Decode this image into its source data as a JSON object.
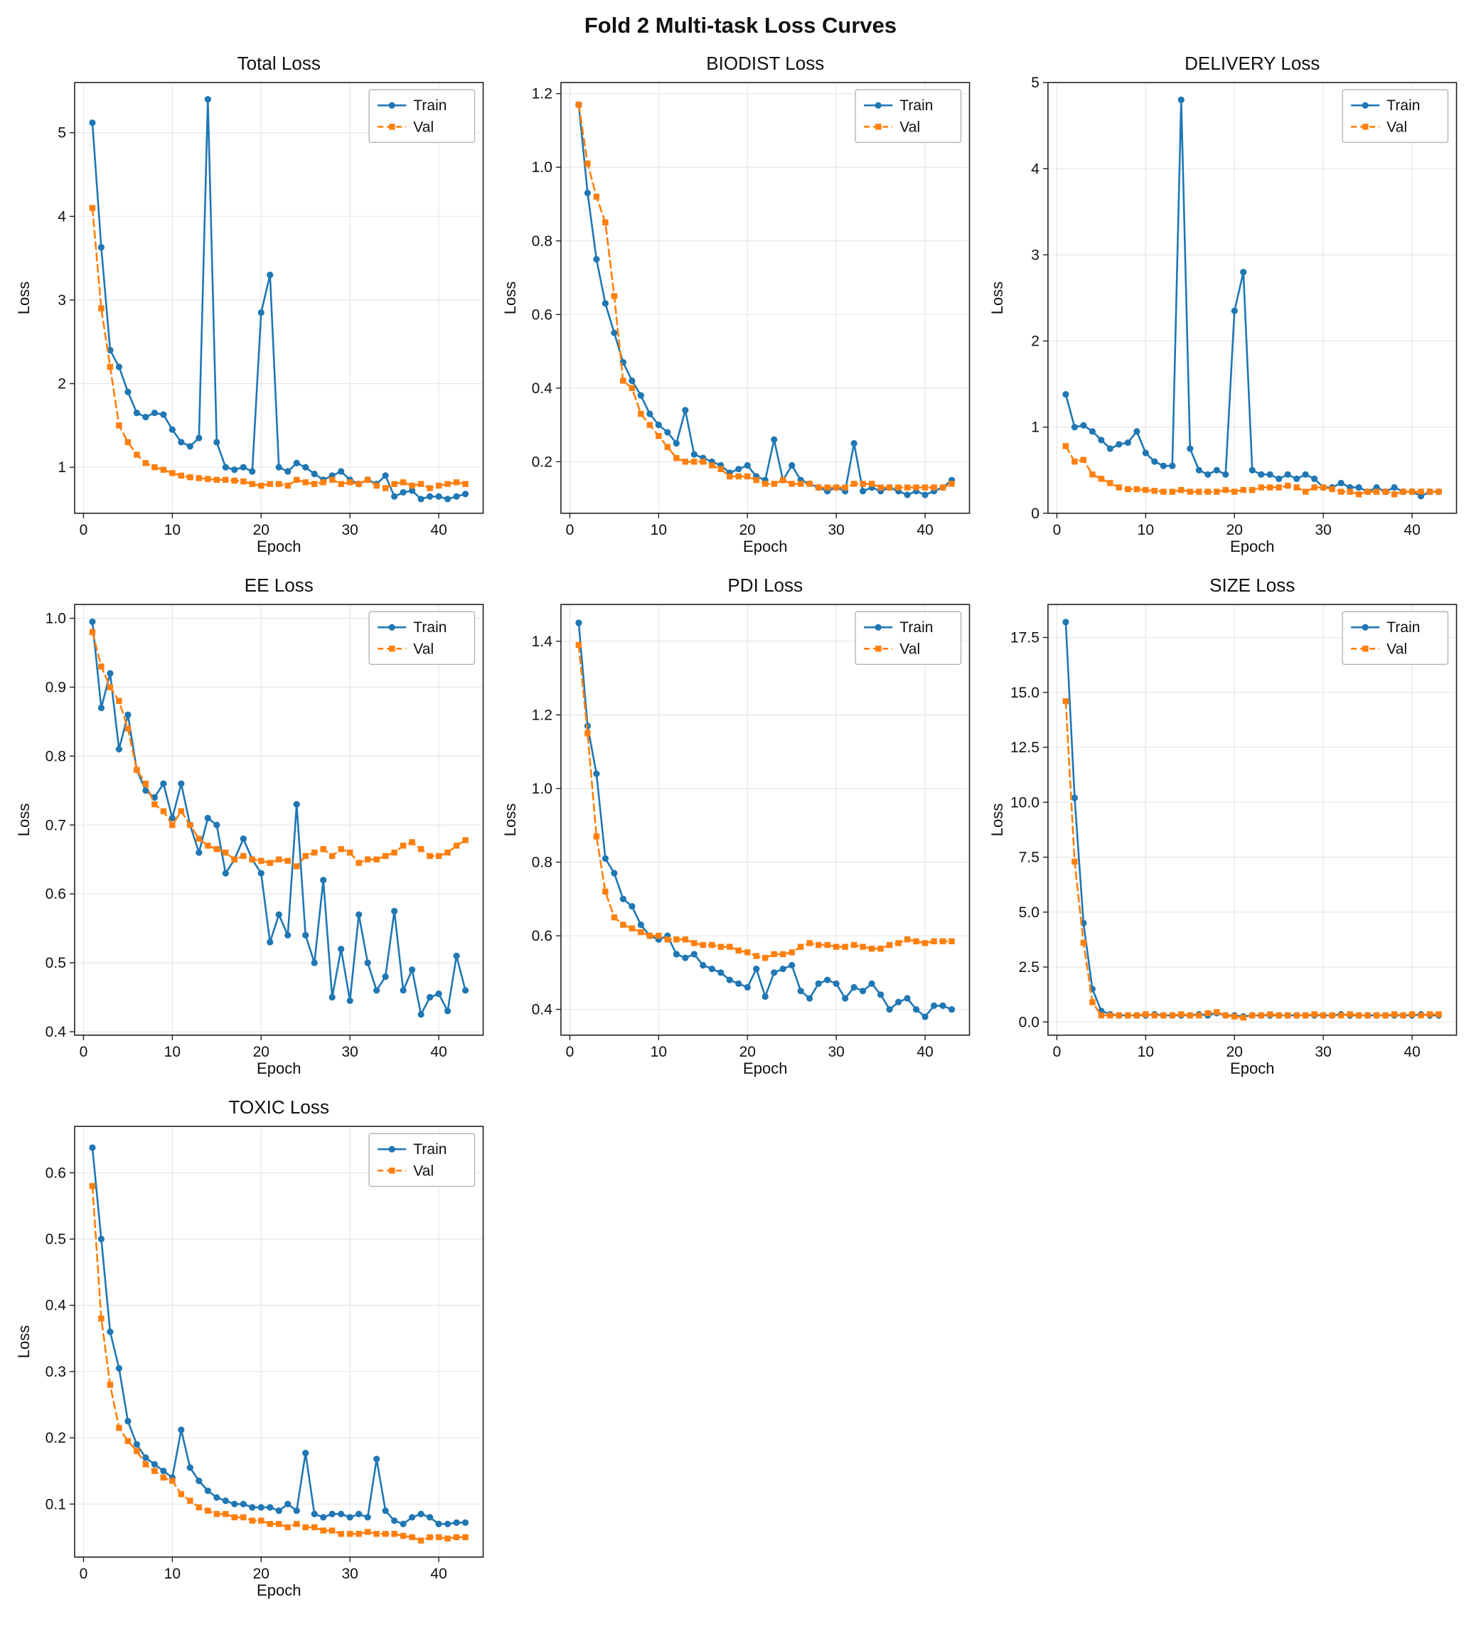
{
  "figure_title": "Fold 2 Multi-task Loss Curves",
  "axis": {
    "xlabel": "Epoch",
    "ylabel": "Loss"
  },
  "legend": {
    "entries": [
      "Train",
      "Val"
    ],
    "position": "top-right"
  },
  "colors": {
    "train": "#1f77b4",
    "val": "#ff7f0e",
    "grid": "#e3e3e3",
    "spine": "#222222"
  },
  "x": [
    1,
    2,
    3,
    4,
    5,
    6,
    7,
    8,
    9,
    10,
    11,
    12,
    13,
    14,
    15,
    16,
    17,
    18,
    19,
    20,
    21,
    22,
    23,
    24,
    25,
    26,
    27,
    28,
    29,
    30,
    31,
    32,
    33,
    34,
    35,
    36,
    37,
    38,
    39,
    40,
    41,
    42,
    43
  ],
  "xticks": {
    "values": [
      0,
      10,
      20,
      30,
      40
    ],
    "labels": [
      "0",
      "10",
      "20",
      "30",
      "40"
    ]
  },
  "xlim": [
    -1,
    45
  ],
  "chart_data": [
    {
      "type": "line",
      "title": "Total Loss",
      "xlabel": "Epoch",
      "ylabel": "Loss",
      "ylim": [
        0.45,
        5.6
      ],
      "yticks": {
        "values": [
          1,
          2,
          3,
          4,
          5
        ],
        "labels": [
          "1",
          "2",
          "3",
          "4",
          "5"
        ]
      },
      "series": [
        {
          "name": "Train",
          "color": "#1f77b4",
          "style": "solid",
          "marker": "circle",
          "values": [
            5.12,
            3.63,
            2.4,
            2.2,
            1.9,
            1.65,
            1.6,
            1.65,
            1.63,
            1.45,
            1.3,
            1.25,
            1.35,
            5.4,
            1.3,
            1.0,
            0.97,
            1.0,
            0.95,
            2.85,
            3.3,
            1.0,
            0.95,
            1.05,
            1.0,
            0.92,
            0.85,
            0.9,
            0.95,
            0.85,
            0.8,
            0.85,
            0.8,
            0.9,
            0.65,
            0.7,
            0.72,
            0.62,
            0.65,
            0.65,
            0.62,
            0.65,
            0.68
          ]
        },
        {
          "name": "Val",
          "color": "#ff7f0e",
          "style": "dashed",
          "marker": "square",
          "values": [
            4.1,
            2.9,
            2.2,
            1.5,
            1.3,
            1.15,
            1.05,
            1.0,
            0.97,
            0.93,
            0.9,
            0.88,
            0.87,
            0.86,
            0.85,
            0.85,
            0.84,
            0.83,
            0.8,
            0.78,
            0.8,
            0.8,
            0.78,
            0.85,
            0.82,
            0.8,
            0.82,
            0.85,
            0.8,
            0.82,
            0.8,
            0.85,
            0.78,
            0.75,
            0.8,
            0.82,
            0.78,
            0.8,
            0.75,
            0.78,
            0.8,
            0.82,
            0.8
          ]
        }
      ]
    },
    {
      "type": "line",
      "title": "BIODIST Loss",
      "xlabel": "Epoch",
      "ylabel": "Loss",
      "ylim": [
        0.06,
        1.23
      ],
      "yticks": {
        "values": [
          0.2,
          0.4,
          0.6,
          0.8,
          1.0,
          1.2
        ],
        "labels": [
          "0.2",
          "0.4",
          "0.6",
          "0.8",
          "1.0",
          "1.2"
        ]
      },
      "series": [
        {
          "name": "Train",
          "color": "#1f77b4",
          "style": "solid",
          "marker": "circle",
          "values": [
            1.17,
            0.93,
            0.75,
            0.63,
            0.55,
            0.47,
            0.42,
            0.38,
            0.33,
            0.3,
            0.28,
            0.25,
            0.34,
            0.22,
            0.21,
            0.2,
            0.19,
            0.17,
            0.18,
            0.19,
            0.16,
            0.15,
            0.26,
            0.15,
            0.19,
            0.15,
            0.14,
            0.13,
            0.12,
            0.13,
            0.12,
            0.25,
            0.12,
            0.13,
            0.12,
            0.13,
            0.12,
            0.11,
            0.12,
            0.11,
            0.12,
            0.13,
            0.15
          ]
        },
        {
          "name": "Val",
          "color": "#ff7f0e",
          "style": "dashed",
          "marker": "square",
          "values": [
            1.17,
            1.01,
            0.92,
            0.85,
            0.65,
            0.42,
            0.4,
            0.33,
            0.3,
            0.27,
            0.24,
            0.21,
            0.2,
            0.2,
            0.2,
            0.19,
            0.18,
            0.16,
            0.16,
            0.16,
            0.15,
            0.14,
            0.14,
            0.15,
            0.14,
            0.14,
            0.14,
            0.13,
            0.13,
            0.13,
            0.13,
            0.14,
            0.14,
            0.14,
            0.13,
            0.13,
            0.13,
            0.13,
            0.13,
            0.13,
            0.13,
            0.13,
            0.14
          ]
        }
      ]
    },
    {
      "type": "line",
      "title": "DELIVERY Loss",
      "xlabel": "Epoch",
      "ylabel": "Loss",
      "ylim": [
        0.0,
        5.0
      ],
      "yticks": {
        "values": [
          0,
          1,
          2,
          3,
          4,
          5
        ],
        "labels": [
          "0",
          "1",
          "2",
          "3",
          "4",
          "5"
        ]
      },
      "series": [
        {
          "name": "Train",
          "color": "#1f77b4",
          "style": "solid",
          "marker": "circle",
          "values": [
            1.38,
            1.0,
            1.02,
            0.95,
            0.85,
            0.75,
            0.8,
            0.82,
            0.95,
            0.7,
            0.6,
            0.55,
            0.55,
            4.8,
            0.75,
            0.5,
            0.45,
            0.5,
            0.45,
            2.35,
            2.8,
            0.5,
            0.45,
            0.45,
            0.4,
            0.45,
            0.4,
            0.45,
            0.4,
            0.3,
            0.3,
            0.35,
            0.3,
            0.3,
            0.25,
            0.3,
            0.25,
            0.3,
            0.25,
            0.25,
            0.2,
            0.25,
            0.25
          ]
        },
        {
          "name": "Val",
          "color": "#ff7f0e",
          "style": "dashed",
          "marker": "square",
          "values": [
            0.78,
            0.6,
            0.62,
            0.45,
            0.4,
            0.35,
            0.3,
            0.28,
            0.28,
            0.27,
            0.26,
            0.25,
            0.25,
            0.27,
            0.25,
            0.25,
            0.25,
            0.25,
            0.27,
            0.25,
            0.27,
            0.27,
            0.3,
            0.3,
            0.3,
            0.32,
            0.3,
            0.25,
            0.3,
            0.3,
            0.28,
            0.25,
            0.25,
            0.22,
            0.25,
            0.25,
            0.25,
            0.22,
            0.25,
            0.25,
            0.25,
            0.25,
            0.25
          ]
        }
      ]
    },
    {
      "type": "line",
      "title": "EE Loss",
      "xlabel": "Epoch",
      "ylabel": "Loss",
      "ylim": [
        0.395,
        1.02
      ],
      "yticks": {
        "values": [
          0.4,
          0.5,
          0.6,
          0.7,
          0.8,
          0.9,
          1.0
        ],
        "labels": [
          "0.4",
          "0.5",
          "0.6",
          "0.7",
          "0.8",
          "0.9",
          "1.0"
        ]
      },
      "series": [
        {
          "name": "Train",
          "color": "#1f77b4",
          "style": "solid",
          "marker": "circle",
          "values": [
            0.995,
            0.87,
            0.92,
            0.81,
            0.86,
            0.78,
            0.75,
            0.74,
            0.76,
            0.71,
            0.76,
            0.7,
            0.66,
            0.71,
            0.7,
            0.63,
            0.65,
            0.68,
            0.65,
            0.63,
            0.53,
            0.57,
            0.54,
            0.73,
            0.54,
            0.5,
            0.62,
            0.45,
            0.52,
            0.445,
            0.57,
            0.5,
            0.46,
            0.48,
            0.575,
            0.46,
            0.49,
            0.425,
            0.45,
            0.455,
            0.43,
            0.51,
            0.46
          ]
        },
        {
          "name": "Val",
          "color": "#ff7f0e",
          "style": "dashed",
          "marker": "square",
          "values": [
            0.98,
            0.93,
            0.9,
            0.88,
            0.84,
            0.78,
            0.76,
            0.73,
            0.72,
            0.7,
            0.72,
            0.7,
            0.68,
            0.67,
            0.665,
            0.66,
            0.65,
            0.655,
            0.65,
            0.648,
            0.645,
            0.65,
            0.648,
            0.64,
            0.655,
            0.66,
            0.665,
            0.655,
            0.665,
            0.66,
            0.645,
            0.65,
            0.65,
            0.655,
            0.66,
            0.67,
            0.675,
            0.665,
            0.655,
            0.655,
            0.66,
            0.67,
            0.678
          ]
        }
      ]
    },
    {
      "type": "line",
      "title": "PDI Loss",
      "xlabel": "Epoch",
      "ylabel": "Loss",
      "ylim": [
        0.33,
        1.5
      ],
      "yticks": {
        "values": [
          0.4,
          0.6,
          0.8,
          1.0,
          1.2,
          1.4
        ],
        "labels": [
          "0.4",
          "0.6",
          "0.8",
          "1.0",
          "1.2",
          "1.4"
        ]
      },
      "series": [
        {
          "name": "Train",
          "color": "#1f77b4",
          "style": "solid",
          "marker": "circle",
          "values": [
            1.45,
            1.17,
            1.04,
            0.81,
            0.77,
            0.7,
            0.68,
            0.63,
            0.6,
            0.59,
            0.6,
            0.55,
            0.54,
            0.55,
            0.52,
            0.51,
            0.5,
            0.48,
            0.47,
            0.46,
            0.51,
            0.435,
            0.5,
            0.51,
            0.52,
            0.45,
            0.43,
            0.47,
            0.48,
            0.47,
            0.43,
            0.46,
            0.45,
            0.47,
            0.44,
            0.4,
            0.42,
            0.43,
            0.4,
            0.38,
            0.41,
            0.41,
            0.4
          ]
        },
        {
          "name": "Val",
          "color": "#ff7f0e",
          "style": "dashed",
          "marker": "square",
          "values": [
            1.39,
            1.15,
            0.87,
            0.72,
            0.65,
            0.63,
            0.62,
            0.61,
            0.6,
            0.6,
            0.59,
            0.59,
            0.59,
            0.58,
            0.575,
            0.575,
            0.57,
            0.57,
            0.56,
            0.555,
            0.545,
            0.54,
            0.55,
            0.55,
            0.555,
            0.57,
            0.58,
            0.575,
            0.575,
            0.57,
            0.57,
            0.575,
            0.57,
            0.565,
            0.565,
            0.575,
            0.58,
            0.59,
            0.585,
            0.58,
            0.585,
            0.585,
            0.585
          ]
        }
      ]
    },
    {
      "type": "line",
      "title": "SIZE Loss",
      "xlabel": "Epoch",
      "ylabel": "Loss",
      "ylim": [
        -0.6,
        19.0
      ],
      "yticks": {
        "values": [
          0.0,
          2.5,
          5.0,
          7.5,
          10.0,
          12.5,
          15.0,
          17.5
        ],
        "labels": [
          "0.0",
          "2.5",
          "5.0",
          "7.5",
          "10.0",
          "12.5",
          "15.0",
          "17.5"
        ]
      },
      "series": [
        {
          "name": "Train",
          "color": "#1f77b4",
          "style": "solid",
          "marker": "circle",
          "values": [
            18.2,
            10.2,
            4.5,
            1.5,
            0.5,
            0.35,
            0.3,
            0.3,
            0.3,
            0.3,
            0.35,
            0.3,
            0.3,
            0.3,
            0.3,
            0.35,
            0.3,
            0.4,
            0.3,
            0.3,
            0.25,
            0.3,
            0.3,
            0.3,
            0.3,
            0.3,
            0.3,
            0.3,
            0.3,
            0.3,
            0.3,
            0.35,
            0.3,
            0.3,
            0.3,
            0.3,
            0.3,
            0.3,
            0.3,
            0.3,
            0.35,
            0.3,
            0.3
          ]
        },
        {
          "name": "Val",
          "color": "#ff7f0e",
          "style": "dashed",
          "marker": "square",
          "values": [
            14.6,
            7.3,
            3.6,
            0.9,
            0.3,
            0.3,
            0.3,
            0.3,
            0.3,
            0.35,
            0.3,
            0.3,
            0.3,
            0.35,
            0.3,
            0.3,
            0.4,
            0.45,
            0.3,
            0.25,
            0.2,
            0.3,
            0.3,
            0.35,
            0.3,
            0.3,
            0.3,
            0.3,
            0.35,
            0.3,
            0.3,
            0.3,
            0.35,
            0.3,
            0.3,
            0.3,
            0.3,
            0.35,
            0.3,
            0.35,
            0.3,
            0.35,
            0.35
          ]
        }
      ]
    },
    {
      "type": "line",
      "title": "TOXIC Loss",
      "xlabel": "Epoch",
      "ylabel": "Loss",
      "ylim": [
        0.02,
        0.67
      ],
      "yticks": {
        "values": [
          0.1,
          0.2,
          0.3,
          0.4,
          0.5,
          0.6
        ],
        "labels": [
          "0.1",
          "0.2",
          "0.3",
          "0.4",
          "0.5",
          "0.6"
        ]
      },
      "series": [
        {
          "name": "Train",
          "color": "#1f77b4",
          "style": "solid",
          "marker": "circle",
          "values": [
            0.638,
            0.5,
            0.36,
            0.305,
            0.225,
            0.19,
            0.17,
            0.16,
            0.15,
            0.14,
            0.212,
            0.155,
            0.135,
            0.12,
            0.11,
            0.105,
            0.1,
            0.1,
            0.095,
            0.095,
            0.095,
            0.09,
            0.1,
            0.09,
            0.177,
            0.085,
            0.08,
            0.085,
            0.085,
            0.08,
            0.085,
            0.08,
            0.168,
            0.09,
            0.075,
            0.07,
            0.08,
            0.085,
            0.08,
            0.07,
            0.07,
            0.072,
            0.072
          ]
        },
        {
          "name": "Val",
          "color": "#ff7f0e",
          "style": "dashed",
          "marker": "square",
          "values": [
            0.58,
            0.38,
            0.28,
            0.215,
            0.195,
            0.18,
            0.16,
            0.15,
            0.14,
            0.135,
            0.115,
            0.105,
            0.095,
            0.09,
            0.085,
            0.085,
            0.08,
            0.08,
            0.075,
            0.075,
            0.07,
            0.07,
            0.065,
            0.07,
            0.065,
            0.065,
            0.06,
            0.06,
            0.055,
            0.055,
            0.055,
            0.058,
            0.055,
            0.055,
            0.055,
            0.052,
            0.05,
            0.045,
            0.05,
            0.05,
            0.048,
            0.05,
            0.05
          ]
        }
      ]
    }
  ]
}
